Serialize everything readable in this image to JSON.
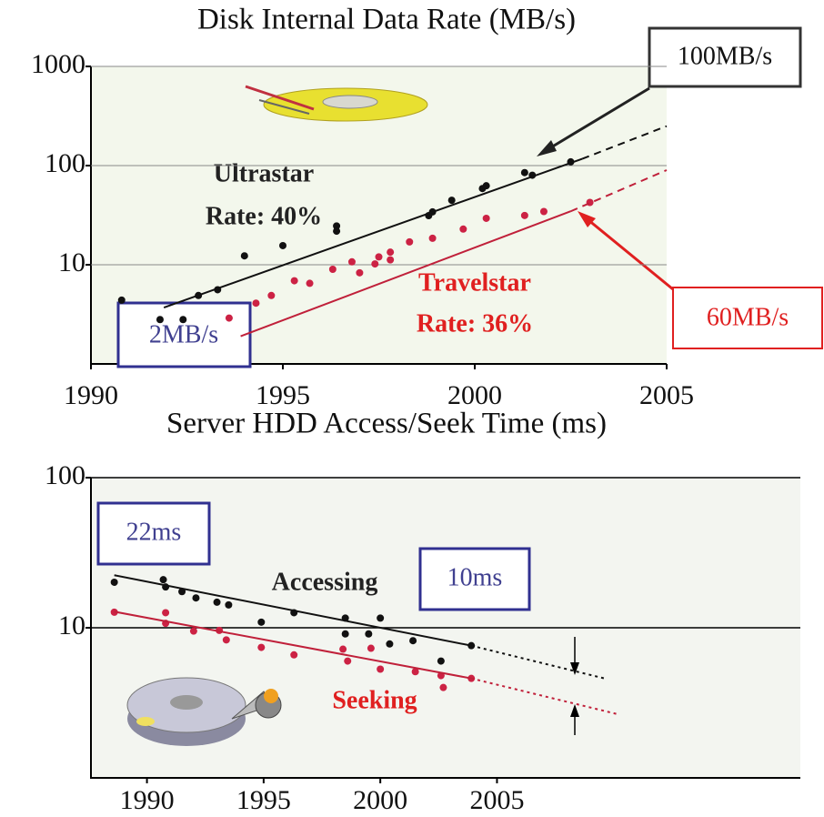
{
  "chart_data": [
    {
      "type": "scatter",
      "title": "Disk Internal Data Rate (MB/s)",
      "log_y": true,
      "grid": true,
      "xlim": [
        1990,
        2005
      ],
      "xticks": [
        1990,
        1995,
        2000,
        2005
      ],
      "ylim": [
        1,
        1000
      ],
      "yticks": [
        10,
        100,
        1000
      ],
      "annotations": [
        "Ultrastar",
        "Rate: 40%",
        "Travelstar",
        "Rate: 36%",
        "100MB/s",
        "60MB/s",
        "2MB/s"
      ],
      "series": [
        {
          "color": "#111111",
          "marker": "dot",
          "x": [
            1990.8,
            1991.8,
            1992.4,
            1992.8,
            1993.3,
            1994.0,
            1995.0,
            1996.4,
            1996.4,
            1998.8,
            1998.9,
            1999.4,
            2000.2,
            2000.3,
            2001.3,
            2001.5,
            2002.5
          ],
          "values": [
            4.4,
            2.8,
            2.8,
            4.9,
            5.6,
            12.3,
            15.6,
            24.6,
            21.8,
            31.3,
            34.1,
            44.7,
            58.7,
            62.6,
            85,
            80,
            109
          ]
        },
        {
          "color": "#cc2244",
          "marker": "dot",
          "x": [
            1993.6,
            1994.3,
            1994.7,
            1995.3,
            1995.7,
            1996.3,
            1996.8,
            1997.0,
            1997.4,
            1997.5,
            1997.8,
            1997.8,
            1998.3,
            1998.9,
            1999.7,
            2000.3,
            2001.3,
            2001.8,
            2003.0
          ],
          "values": [
            2.9,
            4.1,
            4.9,
            6.9,
            6.5,
            9.0,
            10.7,
            8.3,
            10.2,
            12.0,
            11.2,
            13.4,
            17.0,
            18.5,
            22.9,
            29.4,
            31.4,
            34.4,
            42.5
          ]
        },
        {
          "color": "#111111",
          "line": "solid",
          "x": [
            1991.9,
            2002.8
          ],
          "values": [
            3.7,
            117
          ]
        },
        {
          "color": "#111111",
          "line": "dashed",
          "x": [
            2002.8,
            2005
          ],
          "values": [
            117,
            250
          ]
        },
        {
          "color": "#c0203a",
          "line": "solid",
          "x": [
            1993.9,
            2002.5
          ],
          "values": [
            1.9,
            34.6
          ]
        },
        {
          "color": "#c0203a",
          "line": "dashed",
          "x": [
            2002.5,
            2005
          ],
          "values": [
            34.6,
            90
          ]
        }
      ]
    },
    {
      "type": "scatter",
      "title": "Server HDD Access/Seek Time (ms)",
      "log_y": true,
      "grid": true,
      "xlim": [
        1987.6,
        2018
      ],
      "xticks": [
        1990,
        1995,
        2000,
        2005
      ],
      "ylim": [
        1,
        100
      ],
      "yticks": [
        10,
        100
      ],
      "annotations": [
        "Accessing",
        "Seeking",
        "22ms",
        "10ms"
      ],
      "series": [
        {
          "color": "#111111",
          "marker": "dot",
          "x": [
            1988.6,
            1990.7,
            1990.8,
            1991.5,
            1992.1,
            1993.0,
            1993.5,
            1994.9,
            1996.3,
            1998.5,
            1998.5,
            1999.5,
            2000.0,
            2000.4,
            2001.4,
            2002.6,
            2003.9
          ],
          "values": [
            20.1,
            20.9,
            18.7,
            17.4,
            15.8,
            14.8,
            14.2,
            10.9,
            12.6,
            11.6,
            9.1,
            9.1,
            11.6,
            7.8,
            8.2,
            6.0,
            7.6
          ]
        },
        {
          "color": "#cc2244",
          "marker": "dot",
          "x": [
            1988.6,
            1990.8,
            1990.8,
            1992.0,
            1993.1,
            1993.4,
            1994.9,
            1996.3,
            1998.4,
            1998.6,
            1999.6,
            2000.0,
            2001.5,
            2002.6,
            2002.7,
            2003.9
          ],
          "values": [
            12.7,
            12.6,
            10.7,
            9.5,
            9.6,
            8.3,
            7.4,
            6.6,
            7.2,
            6.0,
            7.3,
            5.3,
            5.1,
            4.8,
            4.0,
            4.6
          ]
        },
        {
          "color": "#111111",
          "line": "solid",
          "x": [
            1988.6,
            2003.9
          ],
          "values": [
            22.4,
            7.6
          ]
        },
        {
          "color": "#111111",
          "line": "dotted",
          "x": [
            2003.9,
            2009.6
          ],
          "values": [
            7.6,
            4.6
          ]
        },
        {
          "color": "#c0203a",
          "line": "solid",
          "x": [
            1988.6,
            2003.9
          ],
          "values": [
            12.8,
            4.6
          ]
        },
        {
          "color": "#c0203a",
          "line": "dotted",
          "x": [
            2003.9,
            2010.2
          ],
          "values": [
            4.6,
            2.65
          ]
        }
      ]
    }
  ]
}
